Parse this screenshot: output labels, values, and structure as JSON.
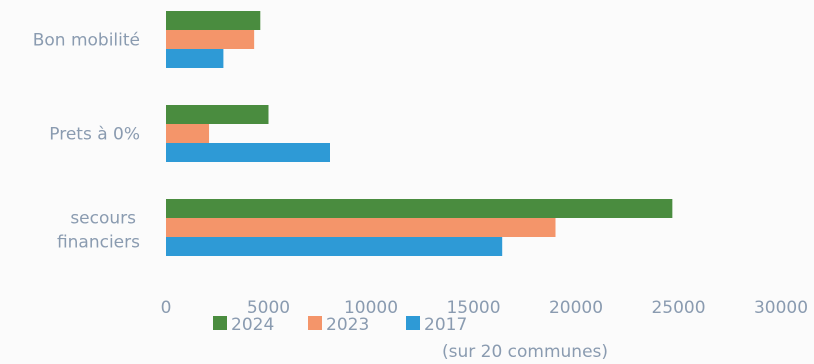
{
  "chart_data": {
    "type": "bar",
    "orientation": "horizontal",
    "categories": [
      "Bon mobilité",
      "Prets à 0%",
      "secours financiers"
    ],
    "series": [
      {
        "name": "2024",
        "values": [
          4600,
          5000,
          24700
        ],
        "color": "#4a8c3f"
      },
      {
        "name": "2023",
        "values": [
          4300,
          2100,
          19000
        ],
        "color": "#f4956a"
      },
      {
        "name": "2017",
        "values": [
          2800,
          8000,
          16400
        ],
        "color": "#2e9ad6"
      }
    ],
    "xlim": [
      0,
      30000
    ],
    "x_ticks": [
      "0",
      "5000",
      "10000",
      "15000",
      "20000",
      "25000",
      "30000"
    ],
    "xlabel": "(sur 20 communes)",
    "title": "",
    "ylabel": "",
    "grid": false,
    "legend_position": "bottom"
  }
}
